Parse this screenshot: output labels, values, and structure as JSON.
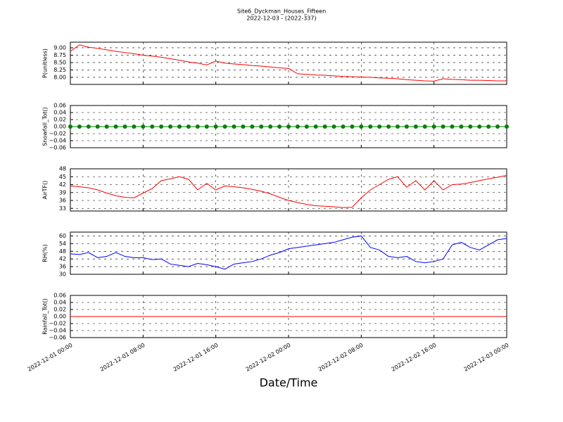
{
  "title": "Site6_Dyckman_Houses_Fifteen",
  "subtitle": "2022-12-03 - (2022-337)",
  "x_label": "Date/Time",
  "xlim": [
    "2022-12-01 00:00",
    "2022-12-03 00:00"
  ],
  "xticks": [
    "2022-12-01 00:00",
    "2022-12-01 08:00",
    "2022-12-01 16:00",
    "2022-12-02 00:00",
    "2022-12-02 08:00",
    "2022-12-02 16:00",
    "2022-12-03 00:00"
  ],
  "x": [
    "2022-12-01 00:00",
    "2022-12-01 01:00",
    "2022-12-01 02:00",
    "2022-12-01 03:00",
    "2022-12-01 04:00",
    "2022-12-01 05:00",
    "2022-12-01 06:00",
    "2022-12-01 07:00",
    "2022-12-01 08:00",
    "2022-12-01 09:00",
    "2022-12-01 10:00",
    "2022-12-01 11:00",
    "2022-12-01 12:00",
    "2022-12-01 13:00",
    "2022-12-01 14:00",
    "2022-12-01 15:00",
    "2022-12-01 16:00",
    "2022-12-01 17:00",
    "2022-12-01 18:00",
    "2022-12-01 19:00",
    "2022-12-01 20:00",
    "2022-12-01 21:00",
    "2022-12-01 22:00",
    "2022-12-01 23:00",
    "2022-12-02 00:00",
    "2022-12-02 01:00",
    "2022-12-02 02:00",
    "2022-12-02 03:00",
    "2022-12-02 04:00",
    "2022-12-02 05:00",
    "2022-12-02 06:00",
    "2022-12-02 07:00",
    "2022-12-02 08:00",
    "2022-12-02 09:00",
    "2022-12-02 10:00",
    "2022-12-02 11:00",
    "2022-12-02 12:00",
    "2022-12-02 13:00",
    "2022-12-02 14:00",
    "2022-12-02 15:00",
    "2022-12-02 16:00",
    "2022-12-02 17:00",
    "2022-12-02 18:00",
    "2022-12-02 19:00",
    "2022-12-02 20:00",
    "2022-12-02 21:00",
    "2022-12-02 22:00",
    "2022-12-02 23:00",
    "2022-12-03 00:00"
  ],
  "chart_data": [
    {
      "type": "line",
      "y_label": "P(unitless)",
      "grid": true,
      "ylim": [
        7.76,
        9.19
      ],
      "yticks": [
        {
          "value": 8,
          "label": "8.00"
        },
        {
          "value": 8.25,
          "label": "8.25"
        },
        {
          "value": 8.5,
          "label": "8.50"
        },
        {
          "value": 8.75,
          "label": "8.75"
        },
        {
          "value": 9,
          "label": "9.00"
        }
      ],
      "series": [
        {
          "color": "#ff0000",
          "values": [
            8.88,
            9.1,
            9.02,
            8.98,
            8.93,
            8.88,
            8.84,
            8.8,
            8.75,
            8.72,
            8.68,
            8.63,
            8.58,
            8.52,
            8.48,
            8.42,
            8.55,
            8.48,
            8.45,
            8.43,
            8.4,
            8.38,
            8.35,
            8.32,
            8.3,
            8.12,
            8.1,
            8.08,
            8.07,
            8.05,
            8.03,
            8.02,
            8.01,
            8,
            7.98,
            7.97,
            7.95,
            7.92,
            7.9,
            7.88,
            7.87,
            7.95,
            7.93,
            7.92,
            7.9,
            7.9,
            7.89,
            7.88,
            7.88
          ]
        }
      ]
    },
    {
      "type": "line",
      "markers": true,
      "y_label": "Snowfall_Tot()",
      "grid": true,
      "ylim": [
        -0.06,
        0.06
      ],
      "yticks": [
        {
          "value": -0.06,
          "label": "−0.06"
        },
        {
          "value": -0.04,
          "label": "−0.04"
        },
        {
          "value": -0.02,
          "label": "−0.02"
        },
        {
          "value": 0,
          "label": "0.00"
        },
        {
          "value": 0.02,
          "label": "0.02"
        },
        {
          "value": 0.04,
          "label": "0.04"
        },
        {
          "value": 0.06,
          "label": "0.06"
        }
      ],
      "series": [
        {
          "color": "#008000",
          "values": [
            0,
            0,
            0,
            0,
            0,
            0,
            0,
            0,
            0,
            0,
            0,
            0,
            0,
            0,
            0,
            0,
            0,
            0,
            0,
            0,
            0,
            0,
            0,
            0,
            0,
            0,
            0,
            0,
            0,
            0,
            0,
            0,
            0,
            0,
            0,
            0,
            0,
            0,
            0,
            0,
            0,
            0,
            0,
            0,
            0,
            0,
            0,
            0,
            0
          ]
        }
      ]
    },
    {
      "type": "line",
      "y_label": "AirTF()",
      "grid": true,
      "ylim": [
        32,
        48
      ],
      "yticks": [
        33,
        36,
        39,
        42,
        45,
        48
      ],
      "series": [
        {
          "color": "#ff0000",
          "values": [
            41.5,
            41.2,
            40.8,
            40,
            38.8,
            37.8,
            37.2,
            37,
            38.8,
            40.5,
            43.5,
            44.2,
            45,
            44,
            40,
            42.5,
            40,
            41.5,
            41.2,
            40.8,
            40.2,
            39.5,
            38.5,
            37.2,
            36,
            35.2,
            34.5,
            34,
            33.8,
            33.6,
            33.3,
            33.4,
            37,
            40,
            42,
            44,
            45,
            41,
            43.5,
            40,
            43.5,
            40,
            42,
            42.2,
            42.8,
            43.5,
            44.2,
            44.8,
            45.5
          ]
        }
      ]
    },
    {
      "type": "line",
      "y_label": "RH(%)",
      "grid": true,
      "ylim": [
        30,
        63
      ],
      "yticks": [
        30,
        36,
        42,
        48,
        54,
        60
      ],
      "series": [
        {
          "color": "#0000ff",
          "values": [
            46,
            45.5,
            47,
            43,
            44,
            47,
            44,
            43,
            43,
            41.5,
            42,
            38,
            37,
            36,
            38.5,
            37.5,
            36,
            34,
            38,
            39,
            40,
            42,
            45,
            47,
            50,
            51,
            52,
            53,
            54,
            55,
            57,
            59,
            60,
            51,
            49,
            44,
            43,
            44,
            40,
            39,
            40,
            42,
            53,
            55,
            51,
            49,
            53,
            57,
            58
          ]
        }
      ]
    },
    {
      "type": "line",
      "y_label": "Rainfall_Tot()",
      "grid": true,
      "ylim": [
        -0.06,
        0.06
      ],
      "yticks": [
        {
          "value": -0.06,
          "label": "−0.06"
        },
        {
          "value": -0.04,
          "label": "−0.04"
        },
        {
          "value": -0.02,
          "label": "−0.02"
        },
        {
          "value": 0,
          "label": "0.00"
        },
        {
          "value": 0.02,
          "label": "0.02"
        },
        {
          "value": 0.04,
          "label": "0.04"
        },
        {
          "value": 0.06,
          "label": "0.06"
        }
      ],
      "series": [
        {
          "color": "#ff0000",
          "values": [
            0,
            0,
            0,
            0,
            0,
            0,
            0,
            0,
            0,
            0,
            0,
            0,
            0,
            0,
            0,
            0,
            0,
            0,
            0,
            0,
            0,
            0,
            0,
            0,
            0,
            0,
            0,
            0,
            0,
            0,
            0,
            0,
            0,
            0,
            0,
            0,
            0,
            0,
            0,
            0,
            0,
            0,
            0,
            0,
            0,
            0,
            0,
            0,
            0
          ]
        }
      ]
    }
  ]
}
